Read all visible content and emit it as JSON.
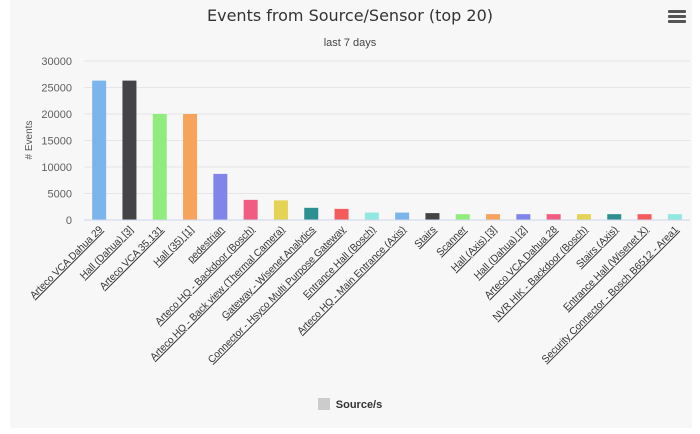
{
  "header": {
    "menu_icon": "hamburger-menu-icon"
  },
  "chart_data": {
    "type": "bar",
    "title": "Events from Source/Sensor (top 20)",
    "subtitle": "last 7 days",
    "xlabel": "",
    "ylabel": "# Events",
    "ylim": [
      0,
      30000
    ],
    "yticks": [
      "0",
      "5000",
      "10000",
      "15000",
      "20000",
      "25000",
      "30000"
    ],
    "grid": true,
    "legend_position": "bottom-center",
    "categories": [
      "Arteco VCA Dahua 29",
      "Hall (Dahua) [3]",
      "Arteco VCA 35.131",
      "Hall (35) [1]",
      "pedestrian",
      "Arteco HQ - Backdoor (Bosch)",
      "Arteco HQ - Back view (Thermal Camera)",
      "Gateway - Wisenet Analytics",
      "Connector - Hsyco Multi Purpose Gateway",
      "Entrance Hall (Bosch)",
      "Arteco HQ - Main Entrance (Axis)",
      "Stairs",
      "Scanner",
      "Hall (Axis) [3]",
      "Hall (Dahua) [2]",
      "Arteco VCA Dahua 28",
      "NVR HIK - Backdoor (Bosch)",
      "Stairs (Axis)",
      "Entrance Hall (Wisenet X)",
      "Security Connector - Bosch B6512 - Area1"
    ],
    "series": [
      {
        "name": "Source/s",
        "values": [
          26300,
          26300,
          20000,
          20000,
          8700,
          3800,
          3700,
          2300,
          2100,
          1400,
          1400,
          1300,
          1100,
          1100,
          1100,
          1100,
          1100,
          1100,
          1100,
          1100
        ],
        "colors": [
          "#7cb5ec",
          "#434348",
          "#90ed7d",
          "#f7a35c",
          "#8085e9",
          "#f15c80",
          "#e4d354",
          "#2b908f",
          "#f45b5b",
          "#91e8e1",
          "#7cb5ec",
          "#434348",
          "#90ed7d",
          "#f7a35c",
          "#8085e9",
          "#f15c80",
          "#e4d354",
          "#2b908f",
          "#f45b5b",
          "#91e8e1"
        ]
      }
    ],
    "legend": [
      {
        "label": "Source/s",
        "color": "#cccccc"
      }
    ]
  }
}
